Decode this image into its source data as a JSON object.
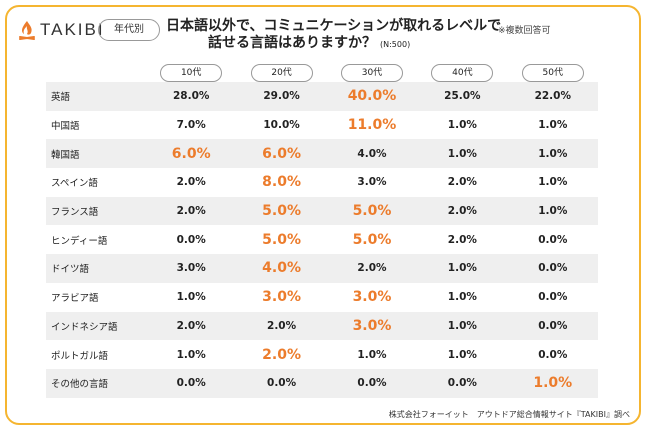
{
  "brand": {
    "name": "TAKIBI",
    "icon": "campfire-icon",
    "accent": "#f5b530",
    "fire_color": "#ec7c2c"
  },
  "badge": "年代別",
  "title": {
    "line1": "日本語以外で、コミュニケーションが取れるレベルで",
    "line2": "話せる言語はありますか？",
    "n": "(N:500)"
  },
  "note": "※複数回答可",
  "source": "株式会社フォーイット　アウトドア総合情報サイト『TAKIBI』調べ",
  "highlight_color": "#ec7c2c",
  "chart_data": {
    "type": "table",
    "columns": [
      "10代",
      "20代",
      "30代",
      "40代",
      "50代"
    ],
    "rows": [
      {
        "label": "英語",
        "values": [
          "28.0%",
          "29.0%",
          "40.0%",
          "25.0%",
          "22.0%"
        ],
        "highlight": [
          2
        ]
      },
      {
        "label": "中国語",
        "values": [
          "7.0%",
          "10.0%",
          "11.0%",
          "1.0%",
          "1.0%"
        ],
        "highlight": [
          2
        ]
      },
      {
        "label": "韓国語",
        "values": [
          "6.0%",
          "6.0%",
          "4.0%",
          "1.0%",
          "1.0%"
        ],
        "highlight": [
          0,
          1
        ]
      },
      {
        "label": "スペイン語",
        "values": [
          "2.0%",
          "8.0%",
          "3.0%",
          "2.0%",
          "1.0%"
        ],
        "highlight": [
          1
        ]
      },
      {
        "label": "フランス語",
        "values": [
          "2.0%",
          "5.0%",
          "5.0%",
          "2.0%",
          "1.0%"
        ],
        "highlight": [
          1,
          2
        ]
      },
      {
        "label": "ヒンディー語",
        "values": [
          "0.0%",
          "5.0%",
          "5.0%",
          "2.0%",
          "0.0%"
        ],
        "highlight": [
          1,
          2
        ]
      },
      {
        "label": "ドイツ語",
        "values": [
          "3.0%",
          "4.0%",
          "2.0%",
          "1.0%",
          "0.0%"
        ],
        "highlight": [
          1
        ]
      },
      {
        "label": "アラビア語",
        "values": [
          "1.0%",
          "3.0%",
          "3.0%",
          "1.0%",
          "0.0%"
        ],
        "highlight": [
          1,
          2
        ]
      },
      {
        "label": "インドネシア語",
        "values": [
          "2.0%",
          "2.0%",
          "3.0%",
          "1.0%",
          "0.0%"
        ],
        "highlight": [
          2
        ]
      },
      {
        "label": "ポルトガル語",
        "values": [
          "1.0%",
          "2.0%",
          "1.0%",
          "1.0%",
          "0.0%"
        ],
        "highlight": [
          1
        ]
      },
      {
        "label": "その他の言語",
        "values": [
          "0.0%",
          "0.0%",
          "0.0%",
          "0.0%",
          "1.0%"
        ],
        "highlight": [
          4
        ]
      }
    ]
  }
}
